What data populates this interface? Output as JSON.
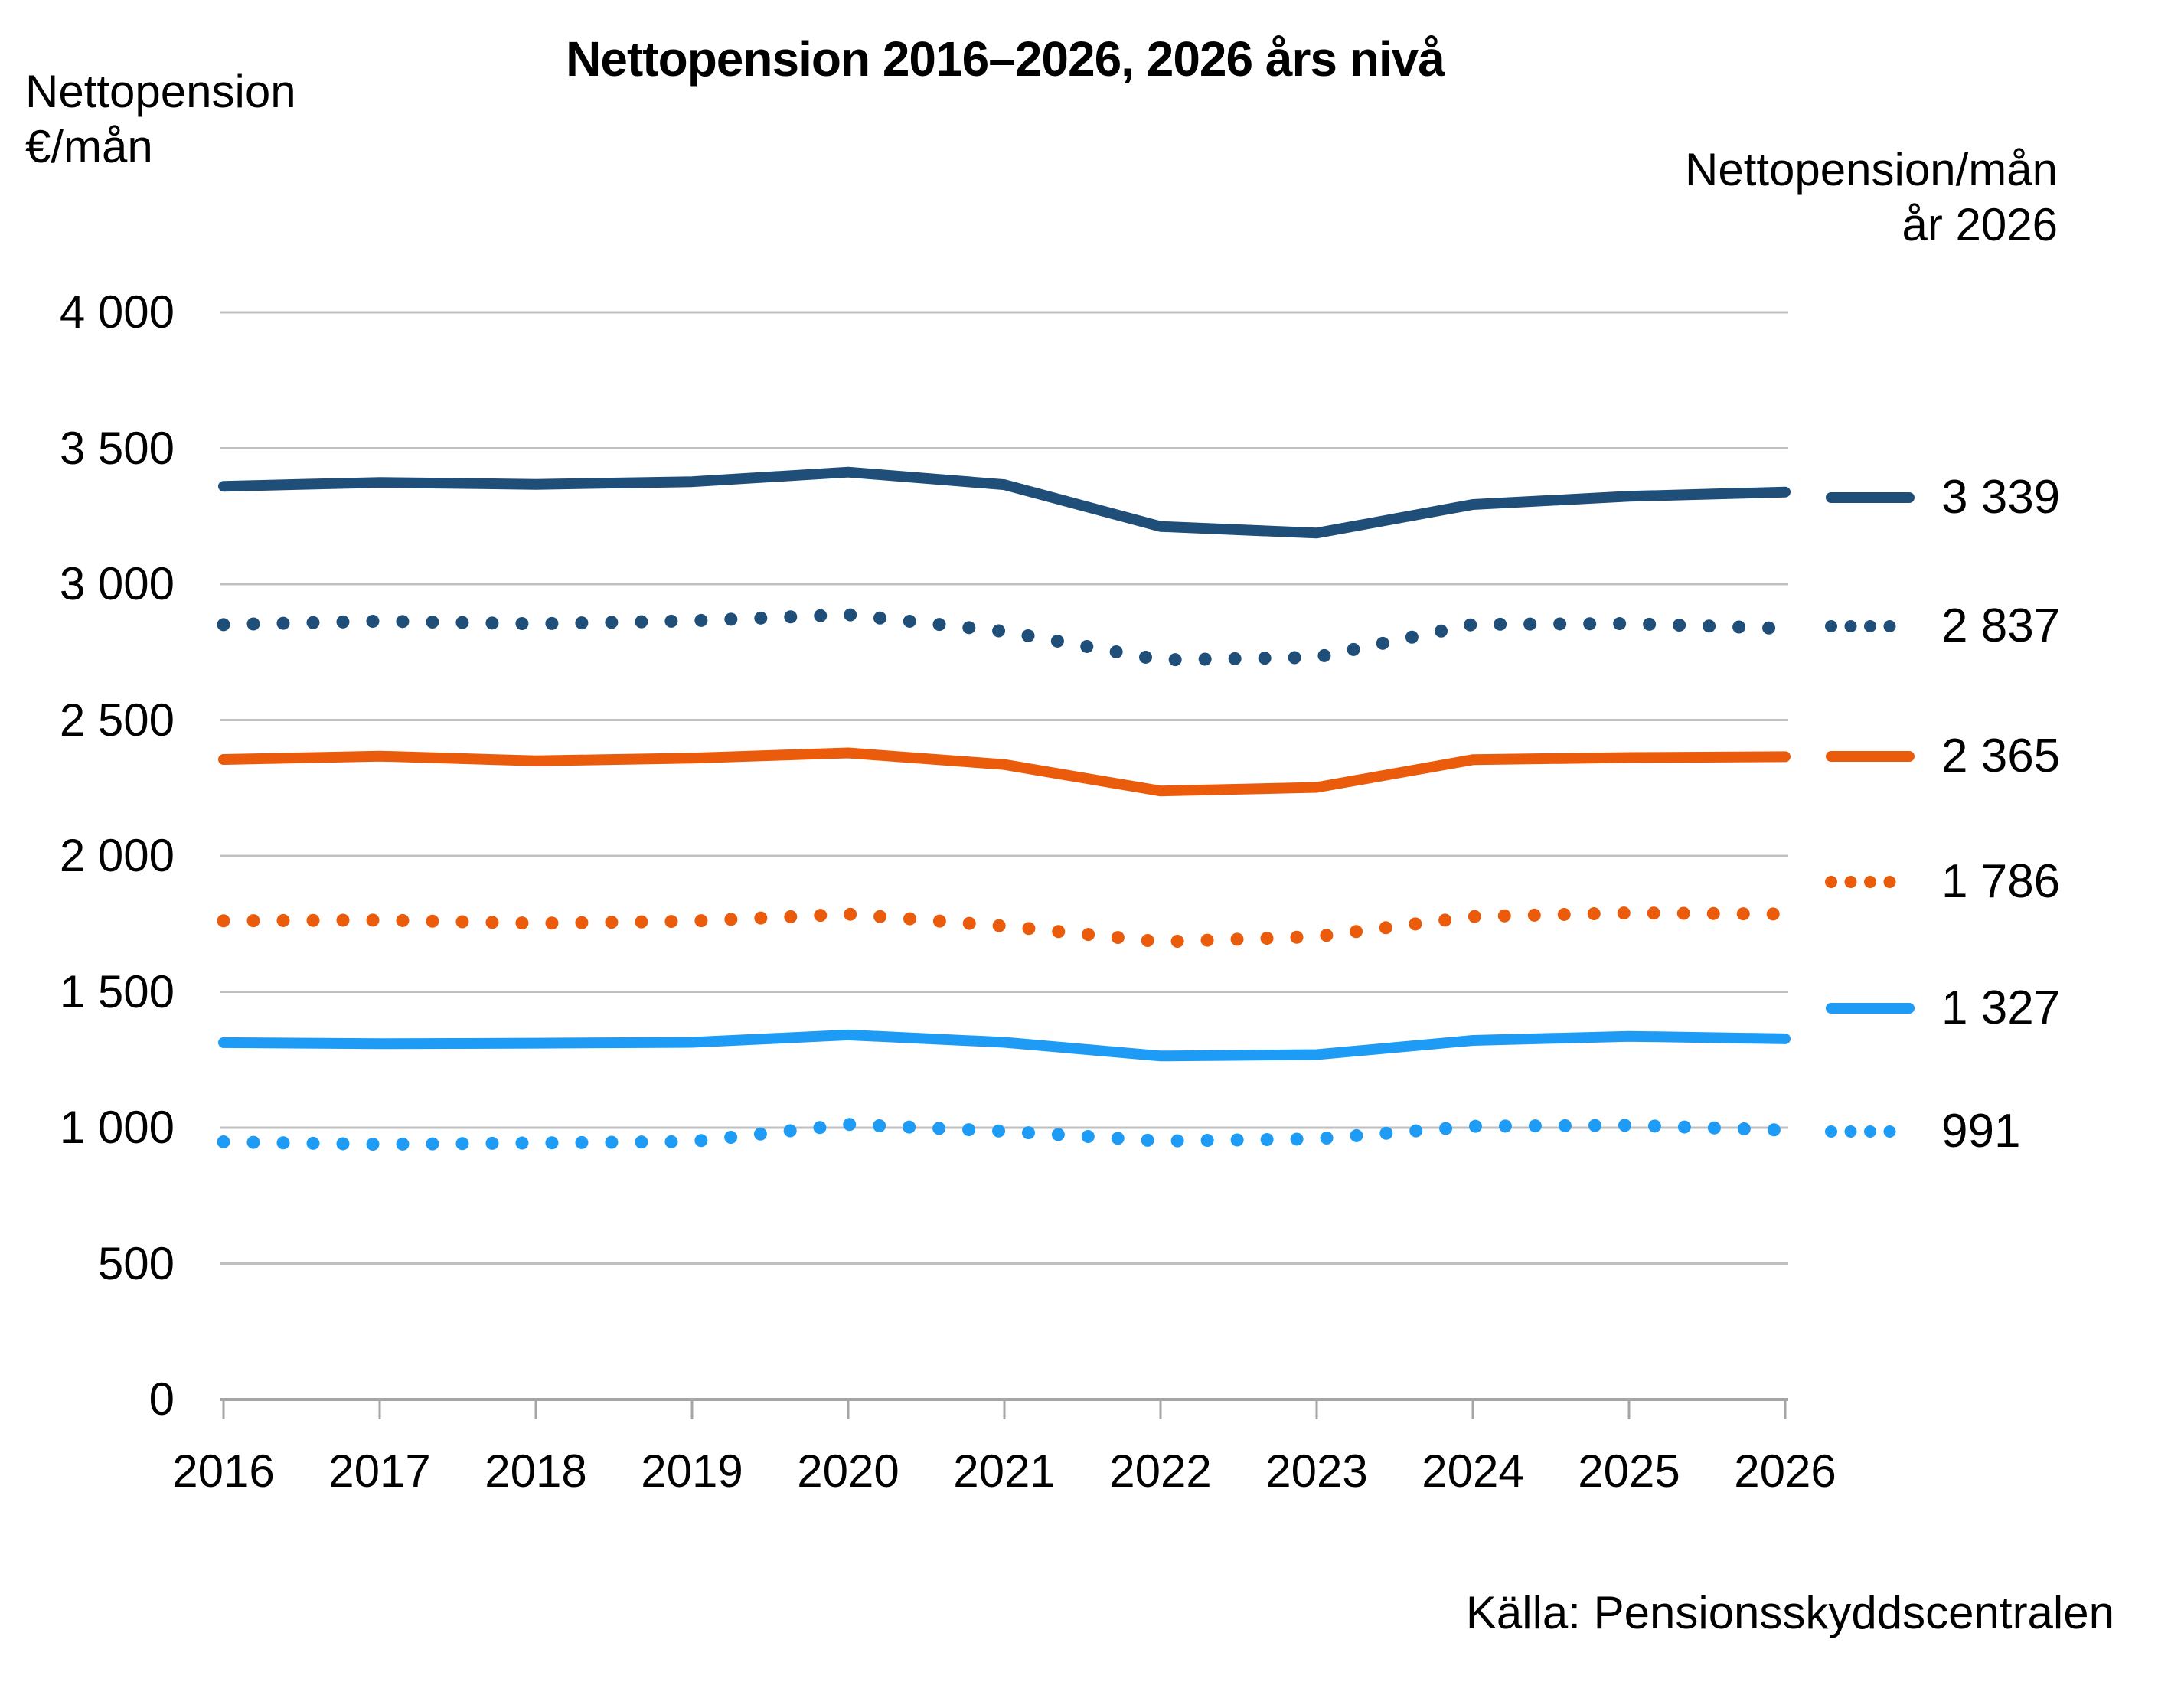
{
  "title": "Nettopension 2016–2026, 2026 års nivå",
  "left_axis_header": {
    "line1": "Nettopension",
    "line2": "€/mån"
  },
  "right_axis_header": {
    "line1": "Nettopension/mån",
    "line2": "år 2026"
  },
  "source": "Källa: Pensionsskyddscentralen",
  "colors": {
    "dark_blue": "#1F4E79",
    "orange": "#EA5B0C",
    "light_blue": "#1E9BF5",
    "gridline": "#C0C0C0",
    "axis_line": "#A6A6A6",
    "text": "#000000"
  },
  "chart_data": {
    "type": "line",
    "x": [
      2016,
      2017,
      2018,
      2019,
      2020,
      2021,
      2022,
      2023,
      2024,
      2025,
      2026
    ],
    "xlabel": "",
    "ylabel": "Nettopension €/mån",
    "ylim": [
      0,
      4000
    ],
    "y_tick_step": 500,
    "y_tick_labels": [
      "4 000",
      "3 500",
      "3 000",
      "2 500",
      "2 000",
      "1 500",
      "1 000",
      "500",
      "0"
    ],
    "grid": true,
    "legend_position": "right",
    "series": [
      {
        "id": "dark-blue-solid",
        "style": "solid",
        "color": "#1F4E79",
        "end_label": "3 339",
        "values": [
          3360,
          3374,
          3367,
          3377,
          3412,
          3366,
          3212,
          3188,
          3293,
          3323,
          3339
        ]
      },
      {
        "id": "dark-blue-dotted",
        "style": "dotted",
        "color": "#1F4E79",
        "end_label": "2 837",
        "values": [
          2851,
          2864,
          2854,
          2865,
          2888,
          2826,
          2721,
          2731,
          2852,
          2855,
          2837
        ]
      },
      {
        "id": "orange-solid",
        "style": "solid",
        "color": "#EA5B0C",
        "end_label": "2 365",
        "values": [
          2355,
          2367,
          2350,
          2360,
          2379,
          2336,
          2239,
          2252,
          2354,
          2362,
          2365
        ]
      },
      {
        "id": "orange-dotted",
        "style": "dotted",
        "color": "#EA5B0C",
        "end_label": "1 786",
        "values": [
          1761,
          1764,
          1752,
          1760,
          1786,
          1742,
          1684,
          1703,
          1777,
          1790,
          1786
        ]
      },
      {
        "id": "light-blue-solid",
        "style": "solid",
        "color": "#1E9BF5",
        "end_label": "1 327",
        "values": [
          1313,
          1309,
          1311,
          1314,
          1341,
          1314,
          1264,
          1269,
          1321,
          1336,
          1327
        ]
      },
      {
        "id": "light-blue-dotted",
        "style": "dotted",
        "color": "#1E9BF5",
        "end_label": "991",
        "values": [
          948,
          939,
          944,
          949,
          1012,
          987,
          951,
          959,
          1005,
          1009,
          991
        ]
      }
    ]
  }
}
